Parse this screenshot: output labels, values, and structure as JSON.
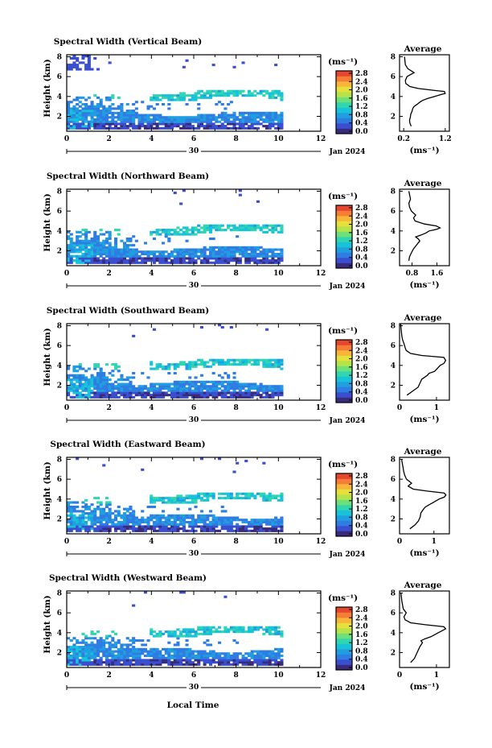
{
  "colors": {
    "colorbar": [
      "#3a2a7a",
      "#3a4fd0",
      "#2f7de3",
      "#1f9fe0",
      "#18c2d8",
      "#30d6b0",
      "#6ee07a",
      "#b4e44a",
      "#e8e03a",
      "#f7b53a",
      "#f57d35",
      "#e4462f"
    ]
  },
  "common": {
    "x_ticks": [
      "0",
      "2",
      "4",
      "6",
      "8",
      "10",
      "12"
    ],
    "y_ticks": [
      "2",
      "4",
      "6",
      "8"
    ],
    "ylabel": "Height (km)",
    "xlabel": "Local Time",
    "date_label": "30",
    "month_label": "Jan 2024",
    "unit_label": "(ms⁻¹)",
    "avg_title": "Average",
    "avg_xlabel": "(ms⁻¹)",
    "cbar_ticks": [
      "0.0",
      "0.4",
      "0.8",
      "1.2",
      "1.6",
      "2.0",
      "2.4",
      "2.8"
    ]
  },
  "chart_data": [
    {
      "type": "heatmap",
      "title": "Spectral Width (Vertical Beam)",
      "xlim": [
        0,
        12
      ],
      "ylim": [
        0.5,
        8.2
      ],
      "avg": {
        "type": "line",
        "xlim": [
          0.1,
          1.3
        ],
        "xticks": [
          "0.2",
          "1.2"
        ],
        "xtick_values": [
          0.2,
          1.2
        ],
        "x": [
          0.38,
          0.35,
          0.34,
          0.36,
          0.37,
          0.4,
          0.42,
          0.45,
          0.52,
          0.58,
          0.65,
          0.78,
          0.95,
          1.1,
          1.2,
          1.18,
          0.95,
          0.55,
          0.35,
          0.25,
          0.24,
          0.28,
          0.45,
          0.3,
          0.24,
          0.22
        ],
        "y": [
          1.0,
          1.3,
          1.6,
          1.9,
          2.2,
          2.5,
          2.8,
          3.0,
          3.2,
          3.4,
          3.6,
          3.8,
          4.0,
          4.2,
          4.3,
          4.5,
          4.6,
          4.8,
          5.0,
          5.3,
          5.6,
          6.0,
          6.4,
          6.8,
          7.2,
          8.0
        ]
      }
    },
    {
      "type": "heatmap",
      "title": "Spectral Width (Northward Beam)",
      "xlim": [
        0,
        12
      ],
      "ylim": [
        0.5,
        8.2
      ],
      "avg": {
        "type": "line",
        "xlim": [
          0.4,
          2.0
        ],
        "xticks": [
          "0.8",
          "1.6"
        ],
        "xtick_values": [
          0.8,
          1.6
        ],
        "x": [
          0.7,
          0.72,
          0.78,
          0.85,
          0.95,
          1.05,
          1.0,
          0.92,
          1.1,
          1.25,
          1.35,
          1.5,
          1.62,
          1.7,
          1.58,
          1.2,
          0.9,
          0.85,
          0.92,
          0.78,
          0.72,
          0.7,
          0.75,
          0.7
        ],
        "y": [
          1.0,
          1.4,
          1.8,
          2.2,
          2.6,
          3.0,
          3.2,
          3.4,
          3.6,
          3.8,
          4.0,
          4.1,
          4.2,
          4.3,
          4.5,
          4.7,
          5.0,
          5.3,
          5.6,
          6.0,
          6.4,
          6.8,
          7.2,
          8.0
        ]
      }
    },
    {
      "type": "heatmap",
      "title": "Spectral Width (Southward Beam)",
      "xlim": [
        0,
        12
      ],
      "ylim": [
        0.5,
        8.2
      ],
      "avg": {
        "type": "line",
        "xlim": [
          0.0,
          1.35
        ],
        "xticks": [
          "0",
          "1"
        ],
        "xtick_values": [
          0,
          1
        ],
        "x": [
          0.2,
          0.35,
          0.5,
          0.55,
          0.6,
          0.75,
          0.8,
          0.95,
          1.0,
          1.05,
          1.1,
          1.2,
          1.25,
          1.2,
          0.6,
          0.3,
          0.18,
          0.15,
          0.12,
          0.08,
          0.06,
          0.05,
          0.04,
          0.03
        ],
        "y": [
          1.0,
          1.4,
          1.8,
          2.2,
          2.6,
          3.0,
          3.2,
          3.4,
          3.6,
          3.8,
          4.0,
          4.2,
          4.5,
          4.8,
          5.0,
          5.2,
          5.5,
          5.8,
          6.2,
          6.6,
          7.0,
          7.4,
          7.8,
          8.2
        ]
      }
    },
    {
      "type": "heatmap",
      "title": "Spectral Width (Eastward Beam)",
      "xlim": [
        0,
        12
      ],
      "ylim": [
        0.5,
        8.2
      ],
      "avg": {
        "type": "line",
        "xlim": [
          0.0,
          1.45
        ],
        "xticks": [
          "0",
          "1"
        ],
        "xtick_values": [
          0,
          1
        ],
        "x": [
          0.3,
          0.45,
          0.55,
          0.6,
          0.62,
          0.7,
          0.75,
          0.85,
          0.95,
          1.05,
          1.15,
          1.3,
          1.35,
          1.3,
          0.8,
          0.4,
          0.25,
          0.35,
          0.2,
          0.15,
          0.12,
          0.1,
          0.08,
          0.06
        ],
        "y": [
          1.0,
          1.4,
          1.8,
          2.2,
          2.6,
          3.0,
          3.2,
          3.4,
          3.6,
          3.8,
          4.0,
          4.2,
          4.4,
          4.6,
          4.8,
          5.0,
          5.3,
          5.6,
          6.0,
          6.4,
          6.8,
          7.2,
          7.6,
          8.0
        ]
      }
    },
    {
      "type": "heatmap",
      "title": "Spectral Width (Westward Beam)",
      "xlim": [
        0,
        12
      ],
      "ylim": [
        0.5,
        8.2
      ],
      "avg": {
        "type": "line",
        "xlim": [
          0.0,
          1.35
        ],
        "xticks": [
          "0",
          "1"
        ],
        "xtick_values": [
          0,
          1
        ],
        "x": [
          0.3,
          0.4,
          0.45,
          0.5,
          0.55,
          0.62,
          0.58,
          0.7,
          0.85,
          0.95,
          1.05,
          1.15,
          1.25,
          1.2,
          0.7,
          0.3,
          0.15,
          0.12,
          0.18,
          0.1,
          0.08,
          0.06,
          0.05,
          0.04
        ],
        "y": [
          1.0,
          1.4,
          1.8,
          2.2,
          2.6,
          3.0,
          3.2,
          3.4,
          3.6,
          3.8,
          4.0,
          4.2,
          4.4,
          4.6,
          4.8,
          5.0,
          5.3,
          5.6,
          6.0,
          6.4,
          6.8,
          7.2,
          7.6,
          8.0
        ]
      }
    }
  ]
}
